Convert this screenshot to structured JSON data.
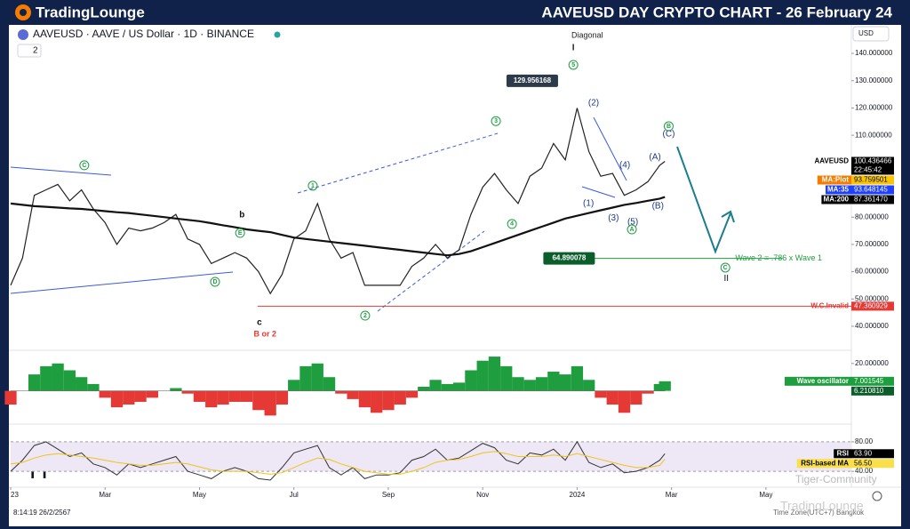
{
  "header": {
    "brand": "TradingLounge",
    "title": "AAVEUSD DAY CRYPTO CHART - 26 February 24"
  },
  "symbol": {
    "text": "AAVEUSD · AAVE / US Dollar · 1D · BINANCE",
    "count": "2"
  },
  "currency": "USD",
  "footer": {
    "timestamp": "8:14:19 26/2/2567",
    "timezone": "Time Zone(UTC+7) Bangkok",
    "watermarks": [
      "Tiger-Community",
      "TradingLounge"
    ]
  },
  "chart_data": [
    {
      "type": "line",
      "x": [
        0,
        0.25,
        0.5,
        0.75,
        1,
        1.25,
        1.5,
        1.75,
        2,
        2.25,
        2.5,
        2.75,
        3,
        3.25,
        3.5,
        3.75,
        4,
        4.25,
        4.5,
        4.75,
        5,
        5.25,
        5.5,
        5.75,
        6,
        6.25,
        6.5,
        6.75,
        7,
        7.25,
        7.5,
        7.75,
        8,
        8.25,
        8.5,
        8.75,
        9,
        9.25,
        9.5,
        9.75,
        10,
        10.25,
        10.5,
        10.75,
        11,
        11.25,
        11.5,
        11.75,
        12,
        12.25,
        12.5,
        12.75,
        13,
        13.25,
        13.5,
        13.75,
        13.86
      ],
      "xlim": [
        0,
        18.6
      ],
      "ylim": [
        32.5,
        149.8
      ],
      "yticks": [
        {
          "value": 140,
          "label": "140.000000"
        },
        {
          "value": 130,
          "label": "130.000000"
        },
        {
          "value": 120,
          "label": "120.000000"
        },
        {
          "value": 110,
          "label": "110.000000"
        },
        {
          "value": 100,
          "label": "100.000000"
        },
        {
          "value": 90,
          "label": "90.000000"
        },
        {
          "value": 80,
          "label": "80.000000"
        },
        {
          "value": 70,
          "label": "70.000000"
        },
        {
          "value": 60,
          "label": "60.000000"
        },
        {
          "value": 50,
          "label": "50.000000"
        },
        {
          "value": 40,
          "label": "40.000000"
        }
      ],
      "series": [
        {
          "name": "AAVEUSD",
          "color": "#222222",
          "width": 1.2,
          "values": [
            55,
            65,
            88,
            90,
            92,
            86,
            90,
            83,
            78,
            70,
            76,
            75,
            76,
            78,
            81,
            72,
            70,
            63,
            65,
            67,
            65,
            60,
            52,
            59,
            72,
            75,
            85,
            72,
            65,
            67,
            55,
            55,
            55,
            55,
            62,
            65,
            70,
            65,
            68,
            81,
            91,
            96,
            90,
            85,
            95,
            98,
            107,
            101,
            120,
            104,
            95,
            96,
            88,
            90,
            93,
            99,
            100.436466
          ]
        },
        {
          "name": "MA:200",
          "color": "#111111",
          "width": 2.2,
          "values": [
            85,
            84.5,
            84,
            83.8,
            83.5,
            83.2,
            83,
            82.6,
            82.2,
            81.8,
            81.5,
            81,
            80.5,
            80,
            79.5,
            79,
            78.5,
            77.8,
            77,
            76.3,
            75.5,
            75,
            74.5,
            73.5,
            72.5,
            72,
            71.5,
            71,
            70.5,
            70,
            69.5,
            69,
            68.5,
            68,
            67.5,
            67,
            66.5,
            66,
            66.5,
            67.5,
            69,
            70.5,
            72,
            73.5,
            75,
            76.5,
            78,
            79.5,
            80.5,
            81.5,
            82.5,
            83.5,
            84.5,
            85.2,
            86,
            86.8,
            87.36147
          ]
        }
      ],
      "badges": [
        {
          "name": "AAVEUSD",
          "value": 100.436466,
          "label": "100.436466",
          "sub": "22:45:42",
          "color": "#000000",
          "label_color": "#ffffff",
          "name_bg": "#ffffff",
          "name_color": "#000000"
        },
        {
          "name": "MA:Plot",
          "value": 93.759501,
          "label": "93.759501",
          "color": "#f9c400",
          "label_color": "#000000",
          "name_bg": "#f57c00",
          "name_color": "#ffffff"
        },
        {
          "name": "MA:35",
          "value": 93.648145,
          "label": "93.648145",
          "color": "#1e40ff",
          "label_color": "#ffffff",
          "name_bg": "#1e40ff",
          "name_color": "#ffffff"
        },
        {
          "name": "MA:200",
          "value": 87.36147,
          "label": "87.361470",
          "color": "#000000",
          "label_color": "#ffffff",
          "name_bg": "#000000",
          "name_color": "#ffffff"
        },
        {
          "name": "W.C.Invalid",
          "value": 47.360929,
          "label": "47.360929",
          "color": "#e53935",
          "label_color": "#ffffff",
          "name_color": "#e53935",
          "line_from": 5.23
        }
      ],
      "price_marks": [
        {
          "value": 129.956168,
          "label": "129.956168",
          "x": 11.05,
          "color": "#2d3a4a"
        },
        {
          "value": 64.890078,
          "label": "64.890078",
          "x": 11.83,
          "color": "#0b5e2a",
          "line_to": 16.35
        }
      ],
      "annotations": [
        {
          "text": "Diagonal",
          "x": 11.88,
          "y": 146.5,
          "color": "#222222",
          "circle": false
        },
        {
          "text": "I",
          "x": 11.92,
          "y": 142,
          "color": "#222222",
          "circle": false
        },
        {
          "text": "5",
          "x": 11.92,
          "y": 135.8,
          "color": "#1e9e3e",
          "circle": true
        },
        {
          "text": "3",
          "x": 10.28,
          "y": 115.2,
          "color": "#1e9e3e",
          "circle": true
        },
        {
          "text": "1",
          "x": 6.4,
          "y": 91.5,
          "color": "#1e9e3e",
          "circle": true
        },
        {
          "text": "2",
          "x": 7.51,
          "y": 43.9,
          "color": "#1e9e3e",
          "circle": true
        },
        {
          "text": "4",
          "x": 10.62,
          "y": 77.5,
          "color": "#1e9e3e",
          "circle": true
        },
        {
          "text": "C",
          "x": 1.56,
          "y": 99,
          "color": "#1e9e3e",
          "circle": true
        },
        {
          "text": "E",
          "x": 4.86,
          "y": 74.2,
          "color": "#1e9e3e",
          "circle": true
        },
        {
          "text": "D",
          "x": 4.33,
          "y": 56.3,
          "color": "#1e9e3e",
          "circle": true
        },
        {
          "text": "b",
          "x": 4.9,
          "y": 80.7,
          "color": "#111111",
          "circle": false
        },
        {
          "text": "c",
          "x": 5.27,
          "y": 41.3,
          "color": "#111111",
          "circle": false
        },
        {
          "text": "B or 2",
          "x": 5.39,
          "y": 37.1,
          "color": "#e53935",
          "circle": false
        },
        {
          "text": "(2)",
          "x": 12.35,
          "y": 121.8,
          "color": "#1e3a8a",
          "circle": false
        },
        {
          "text": "(4)",
          "x": 13.01,
          "y": 99,
          "color": "#1e3a8a",
          "circle": false
        },
        {
          "text": "(A)",
          "x": 13.65,
          "y": 101.9,
          "color": "#1e3a8a",
          "circle": false
        },
        {
          "text": "B",
          "x": 13.94,
          "y": 113.3,
          "color": "#1e9e3e",
          "circle": true
        },
        {
          "text": "(C)",
          "x": 13.94,
          "y": 110.4,
          "color": "#1e3a8a",
          "circle": false
        },
        {
          "text": "(1)",
          "x": 12.24,
          "y": 85,
          "color": "#1e3a8a",
          "circle": false
        },
        {
          "text": "(3)",
          "x": 12.77,
          "y": 79.7,
          "color": "#1e3a8a",
          "circle": false
        },
        {
          "text": "(5)",
          "x": 13.18,
          "y": 78.2,
          "color": "#1e3a8a",
          "circle": false
        },
        {
          "text": "A",
          "x": 13.16,
          "y": 75.5,
          "color": "#1e9e3e",
          "circle": true
        },
        {
          "text": "(B)",
          "x": 13.71,
          "y": 84,
          "color": "#1e3a8a",
          "circle": false
        },
        {
          "text": "C",
          "x": 15.14,
          "y": 61.5,
          "color": "#1e9e3e",
          "circle": true
        },
        {
          "text": "II",
          "x": 15.16,
          "y": 57.4,
          "color": "#111111",
          "circle": false
        },
        {
          "text": "Wave 2 = .786 x Wave 1",
          "x": 15.35,
          "y": 64.9,
          "color": "#1e9e3e",
          "circle": false
        }
      ]
    },
    {
      "type": "bar",
      "x": [
        0,
        0.25,
        0.5,
        0.75,
        1,
        1.25,
        1.5,
        1.75,
        2,
        2.25,
        2.5,
        2.75,
        3,
        3.25,
        3.5,
        3.75,
        4,
        4.25,
        4.5,
        4.75,
        5,
        5.25,
        5.5,
        5.75,
        6,
        6.25,
        6.5,
        6.75,
        7,
        7.25,
        7.5,
        7.75,
        8,
        8.25,
        8.5,
        8.75,
        9,
        9.25,
        9.5,
        9.75,
        10,
        10.25,
        10.5,
        10.75,
        11,
        11.25,
        11.5,
        11.75,
        12,
        12.25,
        12.5,
        12.75,
        13,
        13.25,
        13.5,
        13.75,
        13.86
      ],
      "xlim": [
        0,
        18.6
      ],
      "ylim": [
        -21,
        27
      ],
      "yticks": [
        {
          "value": 20,
          "label": "20.000000"
        }
      ],
      "color_up": "#1e9e3e",
      "color_down": "#e53935",
      "values": [
        -10,
        0,
        12,
        18,
        20,
        15,
        10,
        5,
        -5,
        -12,
        -10,
        -8,
        -5,
        0,
        2,
        -2,
        -8,
        -12,
        -10,
        -8,
        -8,
        -14,
        -18,
        -10,
        8,
        18,
        20,
        10,
        -2,
        -6,
        -12,
        -16,
        -14,
        -10,
        -5,
        3,
        8,
        5,
        6,
        15,
        22,
        25,
        18,
        10,
        8,
        10,
        14,
        12,
        18,
        8,
        -5,
        -10,
        -16,
        -10,
        -2,
        5,
        7
      ],
      "badges": [
        {
          "name": "Wave oscillator",
          "value": 7.001545,
          "label": "7.001545",
          "color": "#1e9e3e",
          "label_color": "#ffffff",
          "name_bg": "#1e9e3e",
          "name_color": "#ffffff"
        },
        {
          "value": 6.21081,
          "label": "6.210810",
          "color": "#0b5e2a",
          "label_color": "#ffffff"
        }
      ]
    },
    {
      "type": "line",
      "x": [
        0,
        0.25,
        0.5,
        0.75,
        1,
        1.25,
        1.5,
        1.75,
        2,
        2.25,
        2.5,
        2.75,
        3,
        3.25,
        3.5,
        3.75,
        4,
        4.25,
        4.5,
        4.75,
        5,
        5.25,
        5.5,
        5.75,
        6,
        6.25,
        6.5,
        6.75,
        7,
        7.25,
        7.5,
        7.75,
        8,
        8.25,
        8.5,
        8.75,
        9,
        9.25,
        9.5,
        9.75,
        10,
        10.25,
        10.5,
        10.75,
        11,
        11.25,
        11.5,
        11.75,
        12,
        12.25,
        12.5,
        12.75,
        13,
        13.25,
        13.5,
        13.75,
        13.86
      ],
      "xlim": [
        0,
        18.6
      ],
      "ylim": [
        22,
        98
      ],
      "xticks": [
        {
          "value": 0,
          "label": "23"
        },
        {
          "value": 2,
          "label": "Mar"
        },
        {
          "value": 4,
          "label": "May"
        },
        {
          "value": 6,
          "label": "Jul"
        },
        {
          "value": 8,
          "label": "Sep"
        },
        {
          "value": 10,
          "label": "Nov"
        },
        {
          "value": 12,
          "label": "2024"
        },
        {
          "value": 14,
          "label": "Mar"
        },
        {
          "value": 16,
          "label": "May"
        }
      ],
      "yticks": [
        {
          "value": 80,
          "label": "80.00"
        },
        {
          "value": 40,
          "label": "40.00"
        }
      ],
      "band": true,
      "series": [
        {
          "name": "RSI",
          "color": "#333333",
          "width": 1,
          "values": [
            40,
            55,
            75,
            80,
            70,
            60,
            65,
            50,
            45,
            35,
            50,
            45,
            50,
            55,
            60,
            40,
            35,
            30,
            40,
            45,
            40,
            30,
            28,
            45,
            65,
            70,
            75,
            45,
            35,
            45,
            30,
            35,
            35,
            38,
            55,
            60,
            70,
            55,
            58,
            68,
            78,
            72,
            55,
            50,
            65,
            62,
            70,
            55,
            80,
            52,
            45,
            50,
            38,
            40,
            45,
            55,
            63.9
          ]
        },
        {
          "name": "RSI-based MA",
          "color": "#f0c419",
          "width": 1,
          "values": [
            50,
            52,
            58,
            62,
            64,
            62,
            60,
            58,
            55,
            52,
            50,
            48,
            48,
            50,
            52,
            50,
            46,
            42,
            40,
            40,
            40,
            38,
            36,
            38,
            45,
            52,
            58,
            56,
            50,
            45,
            40,
            38,
            36,
            36,
            40,
            45,
            52,
            55,
            56,
            60,
            65,
            67,
            64,
            60,
            60,
            60,
            62,
            60,
            64,
            60,
            56,
            52,
            48,
            45,
            45,
            48,
            56.5
          ]
        }
      ],
      "badges": [
        {
          "name": "RSI",
          "value": 63.9,
          "label": "63.90",
          "color": "#000000",
          "label_color": "#ffffff",
          "name_bg": "#000000",
          "name_color": "#ffffff"
        },
        {
          "name": "RSI-based MA",
          "value": 56.5,
          "label": "56.50",
          "color": "#f9e04b",
          "label_color": "#000000",
          "name_bg": "#f9e04b",
          "name_color": "#000000"
        }
      ]
    }
  ]
}
